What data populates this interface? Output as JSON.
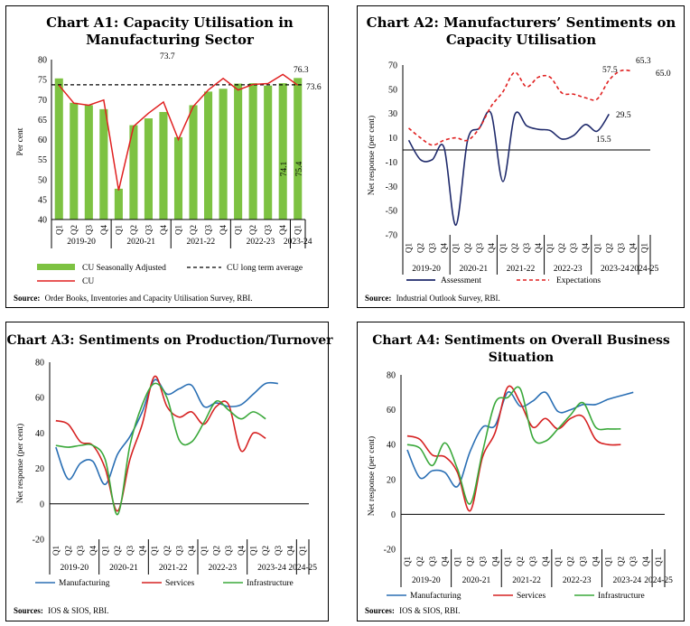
{
  "quarter_labels": [
    "Q1",
    "Q2",
    "Q3",
    "Q4"
  ],
  "chart_data": [
    {
      "id": "a1",
      "type": "bar",
      "title": "Chart A1: Capacity Utilisation in Manufacturing Sector",
      "title_lines": [
        "Chart A1: Capacity Utilisation in",
        "Manufacturing Sector"
      ],
      "ylabel": "Per cent",
      "ylim": [
        40,
        80
      ],
      "yticks": [
        40,
        45,
        50,
        55,
        60,
        65,
        70,
        75,
        80
      ],
      "categories": [
        "Q1",
        "Q2",
        "Q3",
        "Q4",
        "Q1",
        "Q2",
        "Q3",
        "Q4",
        "Q1",
        "Q2",
        "Q3",
        "Q4",
        "Q1",
        "Q2",
        "Q3",
        "Q4",
        "Q1"
      ],
      "groups": [
        {
          "label": "2019-20",
          "span": 4
        },
        {
          "label": "2020-21",
          "span": 4
        },
        {
          "label": "2021-22",
          "span": 4
        },
        {
          "label": "2022-23",
          "span": 4
        },
        {
          "label": "2023-24",
          "span": 1
        }
      ],
      "series": [
        {
          "name": "CU Seasonally Adjusted",
          "kind": "bar",
          "color": "#7dc242",
          "values": [
            75.3,
            69.2,
            68.6,
            67.6,
            47.7,
            63.6,
            65.3,
            66.9,
            60.6,
            68.6,
            72.0,
            72.7,
            74.0,
            74.1,
            73.5,
            74.1,
            75.4
          ]
        },
        {
          "name": "CU",
          "kind": "line",
          "color": "#e02020",
          "values": [
            73.6,
            69.1,
            68.6,
            69.9,
            47.3,
            63.3,
            66.6,
            69.4,
            60.0,
            68.3,
            72.4,
            75.3,
            72.4,
            73.8,
            74.0,
            76.3,
            73.6
          ]
        },
        {
          "name": "CU long term average",
          "kind": "hline",
          "color": "#000000",
          "value": 73.7
        }
      ],
      "annotations": {
        "avg": "73.7",
        "cu_last": "76.3",
        "line_end": "73.6",
        "bar_q4": "74.1",
        "bar_q1": "75.4"
      },
      "source_label": "Source:",
      "source_text": "Order Books, Inventories and Capacity Utilisation Survey, RBI."
    },
    {
      "id": "a2",
      "type": "line",
      "title": "Chart A2: Manufacturers' Sentiments on Capacity Utilisation",
      "title_lines": [
        "Chart A2: Manufacturers’ Sentiments on",
        "Capacity Utilisation"
      ],
      "ylabel": "Net response (per cent)",
      "ylim": [
        -70,
        70
      ],
      "yticks": [
        -70,
        -50,
        -30,
        -10,
        10,
        30,
        50,
        70
      ],
      "categories": [
        "Q1",
        "Q2",
        "Q3",
        "Q4",
        "Q1",
        "Q2",
        "Q3",
        "Q4",
        "Q1",
        "Q2",
        "Q3",
        "Q4",
        "Q1",
        "Q2",
        "Q3",
        "Q4",
        "Q1",
        "Q2",
        "Q3",
        "Q4",
        "Q1"
      ],
      "groups": [
        {
          "label": "2019-20",
          "span": 4
        },
        {
          "label": "2020-21",
          "span": 4
        },
        {
          "label": "2021-22",
          "span": 4
        },
        {
          "label": "2022-23",
          "span": 4
        },
        {
          "label": "2023-24",
          "span": 4
        },
        {
          "label": "2024-25",
          "span": 1
        }
      ],
      "series": [
        {
          "name": "Assessment",
          "color": "#1f2a6b",
          "dash": false,
          "values": [
            8,
            -8,
            -8,
            2,
            -62,
            8,
            18,
            30,
            -26,
            29,
            20,
            17,
            16,
            9,
            12,
            21,
            15.5,
            29.5,
            null,
            null,
            null
          ]
        },
        {
          "name": "Expectations",
          "color": "#e02020",
          "dash": true,
          "values": [
            18,
            10,
            4,
            8,
            10,
            8,
            18,
            36,
            48,
            64,
            52,
            60,
            60,
            47,
            46,
            43,
            42,
            57.5,
            65.3,
            65.0,
            null
          ]
        }
      ],
      "annotations": {
        "a_mid": "15.5",
        "a_end": "29.5",
        "e1": "57.5",
        "e2": "65.3",
        "e3": "65.0"
      },
      "source_label": "Source:",
      "source_text": "Industrial Outlook Survey, RBI."
    },
    {
      "id": "a3",
      "type": "line",
      "title": "Chart A3: Sentiments on Production/Turnover",
      "title_lines": [
        "Chart A3: Sentiments on Production/Turnover"
      ],
      "ylabel": "Net response (per cent)",
      "ylim": [
        -20,
        80
      ],
      "yticks": [
        -20,
        0,
        20,
        40,
        60,
        80
      ],
      "categories": [
        "Q1",
        "Q2",
        "Q3",
        "Q4",
        "Q1",
        "Q2",
        "Q3",
        "Q4",
        "Q1",
        "Q2",
        "Q3",
        "Q4",
        "Q1",
        "Q2",
        "Q3",
        "Q4",
        "Q1",
        "Q2",
        "Q3",
        "Q4",
        "Q1"
      ],
      "groups": [
        {
          "label": "2019-20",
          "span": 4
        },
        {
          "label": "2020-21",
          "span": 4
        },
        {
          "label": "2021-22",
          "span": 4
        },
        {
          "label": "2022-23",
          "span": 4
        },
        {
          "label": "2023-24",
          "span": 4
        },
        {
          "label": "2024-25",
          "span": 1
        }
      ],
      "series": [
        {
          "name": "Manufacturing",
          "color": "#2a6fb4",
          "dash": false,
          "values": [
            32,
            14,
            23,
            24,
            11,
            28,
            38,
            52,
            70,
            62,
            65,
            67,
            55,
            57,
            55,
            56,
            62,
            68,
            68,
            null,
            null
          ]
        },
        {
          "name": "Services",
          "color": "#d62222",
          "dash": false,
          "values": [
            47,
            45,
            35,
            33,
            20,
            -4,
            25,
            45,
            72,
            55,
            49,
            52,
            45,
            55,
            56,
            30,
            40,
            37,
            null,
            null,
            null
          ]
        },
        {
          "name": "Infrastructure",
          "color": "#3aa83a",
          "dash": false,
          "values": [
            33,
            32,
            33,
            33,
            25,
            -6,
            33,
            56,
            68,
            60,
            36,
            35,
            46,
            58,
            53,
            48,
            52,
            48,
            null,
            null,
            null
          ]
        }
      ],
      "source_label": "Sources:",
      "source_text": "IOS & SIOS, RBI."
    },
    {
      "id": "a4",
      "type": "line",
      "title": "Chart A4: Sentiments on Overall Business Situation",
      "title_lines": [
        "Chart A4: Sentiments on Overall Business",
        "Situation"
      ],
      "ylabel": "Net response (per cent)",
      "ylim": [
        -20,
        80
      ],
      "yticks": [
        -20,
        0,
        20,
        40,
        60,
        80
      ],
      "categories": [
        "Q1",
        "Q2",
        "Q3",
        "Q4",
        "Q1",
        "Q2",
        "Q3",
        "Q4",
        "Q1",
        "Q2",
        "Q3",
        "Q4",
        "Q1",
        "Q2",
        "Q3",
        "Q4",
        "Q1",
        "Q2",
        "Q3",
        "Q4",
        "Q1"
      ],
      "groups": [
        {
          "label": "2019-20",
          "span": 4
        },
        {
          "label": "2020-21",
          "span": 4
        },
        {
          "label": "2021-22",
          "span": 4
        },
        {
          "label": "2022-23",
          "span": 4
        },
        {
          "label": "2023-24",
          "span": 4
        },
        {
          "label": "2024-25",
          "span": 1
        }
      ],
      "series": [
        {
          "name": "Manufacturing",
          "color": "#2a6fb4",
          "dash": false,
          "values": [
            37,
            21,
            25,
            24,
            16,
            36,
            50,
            51,
            70,
            62,
            65,
            70,
            59,
            60,
            63,
            63,
            66,
            68,
            70,
            null,
            null
          ]
        },
        {
          "name": "Services",
          "color": "#d62222",
          "dash": false,
          "values": [
            45,
            43,
            34,
            33,
            24,
            2,
            33,
            47,
            73,
            64,
            50,
            55,
            49,
            55,
            56,
            43,
            40,
            40,
            null,
            null,
            null
          ]
        },
        {
          "name": "Infrastructure",
          "color": "#3aa83a",
          "dash": false,
          "values": [
            40,
            38,
            28,
            41,
            26,
            6,
            36,
            64,
            67,
            72,
            44,
            42,
            49,
            57,
            64,
            50,
            49,
            49,
            null,
            null,
            null
          ]
        }
      ],
      "source_label": "Sources:",
      "source_text": "IOS & SIOS, RBI."
    }
  ]
}
